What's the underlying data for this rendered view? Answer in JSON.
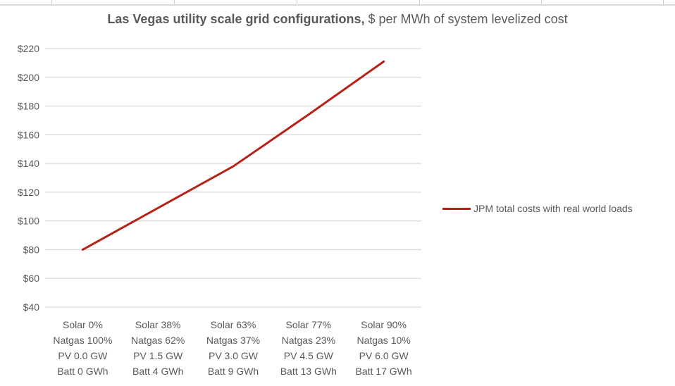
{
  "chart_data": {
    "type": "line",
    "title_bold": "Las Vegas utility scale grid configurations,",
    "title_rest": " $ per MWh of system levelized cost",
    "categories": [
      [
        "Solar 0%",
        "Natgas 100%",
        "PV 0.0 GW",
        "Batt 0 GWh"
      ],
      [
        "Solar 38%",
        "Natgas 62%",
        "PV 1.5 GW",
        "Batt 4 GWh"
      ],
      [
        "Solar 63%",
        "Natgas 37%",
        "PV 3.0 GW",
        "Batt 9 GWh"
      ],
      [
        "Solar 77%",
        "Natgas 23%",
        "PV 4.5 GW",
        "Batt 13 GWh"
      ],
      [
        "Solar 90%",
        "Natgas 10%",
        "PV 6.0 GW",
        "Batt 17 GWh"
      ]
    ],
    "series": [
      {
        "name": "JPM total costs with real world loads",
        "values": [
          80,
          109,
          138,
          174,
          211
        ],
        "color": "#b52218"
      }
    ],
    "ylim": [
      40,
      220
    ],
    "yticks": [
      "$40",
      "$60",
      "$80",
      "$100",
      "$120",
      "$140",
      "$160",
      "$180",
      "$200",
      "$220"
    ],
    "grid": true,
    "legend_position": "right"
  }
}
